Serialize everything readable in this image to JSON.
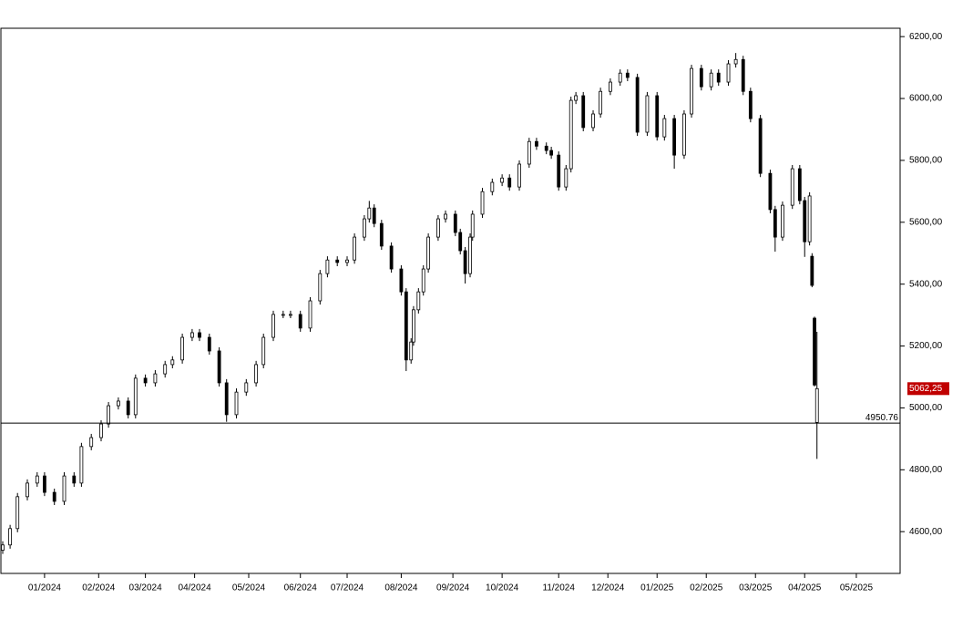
{
  "chart_data": {
    "type": "candlestick",
    "color": "#000000",
    "x": [
      0,
      3,
      6,
      10,
      14,
      17,
      21,
      25,
      29,
      32,
      36,
      40,
      43,
      47,
      51,
      54,
      58,
      62,
      66,
      69,
      73,
      77,
      80,
      84,
      88,
      91,
      95,
      99,
      103,
      106,
      110,
      114,
      117,
      121,
      125,
      129,
      132,
      136,
      140,
      143,
      147,
      149,
      151,
      154,
      158,
      162,
      164,
      166,
      167,
      169,
      171,
      173,
      177,
      180,
      184,
      186,
      188,
      190,
      191,
      195,
      199,
      203,
      206,
      210,
      214,
      217,
      221,
      223,
      226,
      229,
      231,
      233,
      236,
      240,
      243,
      247,
      251,
      254,
      258,
      262,
      266,
      269,
      273,
      277,
      280,
      284,
      288,
      291,
      295,
      298,
      301,
      304,
      308,
      312,
      314,
      317,
      321,
      324,
      326,
      328,
      329,
      330,
      331
    ],
    "open": [
      4540,
      4557,
      4610,
      4713,
      4757,
      4780,
      4727,
      4698,
      4780,
      4757,
      4875,
      4904,
      4948,
      5007,
      5022,
      4978,
      5096,
      5081,
      5110,
      5140,
      5155,
      5228,
      5243,
      5228,
      5184,
      5081,
      4978,
      5051,
      5081,
      5140,
      5228,
      5302,
      5302,
      5302,
      5258,
      5346,
      5434,
      5478,
      5470,
      5478,
      5552,
      5611,
      5646,
      5596,
      5523,
      5449,
      5375,
      5155,
      5213,
      5317,
      5375,
      5449,
      5552,
      5611,
      5626,
      5567,
      5508,
      5434,
      5552,
      5626,
      5699,
      5729,
      5743,
      5714,
      5788,
      5861,
      5846,
      5832,
      5817,
      5714,
      5773,
      5994,
      6009,
      5906,
      5950,
      6023,
      6053,
      6082,
      6068,
      5891,
      6009,
      5876,
      5935,
      5817,
      5950,
      6097,
      6038,
      6082,
      6053,
      6112,
      6126,
      6023,
      5935,
      5758,
      5641,
      5552,
      5655,
      5773,
      5670,
      5537,
      5490,
      5290,
      4953
    ],
    "high": [
      4569,
      4622,
      4725,
      4769,
      4792,
      4792,
      4739,
      4792,
      4792,
      4887,
      4916,
      4960,
      5019,
      5034,
      5034,
      5108,
      5108,
      5122,
      5152,
      5167,
      5240,
      5255,
      5255,
      5240,
      5196,
      5093,
      5063,
      5093,
      5152,
      5240,
      5314,
      5314,
      5314,
      5314,
      5358,
      5446,
      5490,
      5490,
      5490,
      5564,
      5623,
      5669,
      5658,
      5608,
      5535,
      5461,
      5387,
      5225,
      5329,
      5387,
      5461,
      5564,
      5623,
      5638,
      5638,
      5579,
      5520,
      5564,
      5638,
      5711,
      5741,
      5755,
      5755,
      5800,
      5873,
      5873,
      5858,
      5844,
      5829,
      5785,
      6006,
      6021,
      6021,
      5962,
      6035,
      6065,
      6094,
      6094,
      6080,
      6021,
      6021,
      5947,
      5947,
      5962,
      6109,
      6109,
      6094,
      6094,
      6124,
      6147,
      6138,
      6035,
      5947,
      5770,
      5653,
      5667,
      5785,
      5785,
      5682,
      5697,
      5500,
      5295,
      5246
    ],
    "low": [
      4528,
      4545,
      4598,
      4701,
      4745,
      4715,
      4686,
      4686,
      4745,
      4745,
      4863,
      4892,
      4936,
      4995,
      4966,
      4966,
      5069,
      5069,
      5098,
      5128,
      5143,
      5216,
      5216,
      5172,
      5069,
      4955,
      4966,
      5039,
      5069,
      5128,
      5216,
      5290,
      5290,
      5246,
      5246,
      5334,
      5422,
      5458,
      5458,
      5466,
      5540,
      5599,
      5584,
      5511,
      5437,
      5363,
      5119,
      5143,
      5201,
      5305,
      5363,
      5437,
      5540,
      5599,
      5555,
      5496,
      5402,
      5422,
      5540,
      5614,
      5687,
      5717,
      5702,
      5702,
      5776,
      5834,
      5820,
      5805,
      5702,
      5702,
      5761,
      5982,
      5894,
      5894,
      5938,
      6011,
      6041,
      6056,
      5879,
      5879,
      5864,
      5864,
      5773,
      5805,
      5938,
      6026,
      6026,
      6041,
      6041,
      6100,
      6011,
      5923,
      5746,
      5629,
      5505,
      5540,
      5643,
      5658,
      5488,
      5525,
      5390,
      5069,
      4835
    ],
    "close": [
      4557,
      4610,
      4713,
      4757,
      4780,
      4727,
      4698,
      4780,
      4757,
      4875,
      4904,
      4948,
      5007,
      5022,
      4978,
      5096,
      5081,
      5110,
      5140,
      5155,
      5228,
      5243,
      5228,
      5184,
      5081,
      4978,
      5051,
      5081,
      5140,
      5228,
      5302,
      5302,
      5302,
      5258,
      5346,
      5434,
      5478,
      5470,
      5478,
      5552,
      5611,
      5646,
      5596,
      5523,
      5449,
      5375,
      5155,
      5213,
      5317,
      5375,
      5449,
      5552,
      5611,
      5626,
      5567,
      5508,
      5434,
      5552,
      5626,
      5699,
      5729,
      5743,
      5714,
      5788,
      5861,
      5846,
      5832,
      5817,
      5714,
      5773,
      5994,
      6009,
      5906,
      5950,
      6023,
      6053,
      6082,
      6068,
      5891,
      6009,
      5876,
      5935,
      5817,
      5950,
      6097,
      6038,
      6082,
      6053,
      6112,
      6126,
      6023,
      5935,
      5758,
      5641,
      5552,
      5655,
      5773,
      5670,
      5537,
      5685,
      5396,
      5074,
      5062.25
    ],
    "xlim": [
      -0.74,
      364.8
    ],
    "ylim": [
      4465,
      6227
    ],
    "xticks": [
      {
        "value": 17,
        "label": "01/2024"
      },
      {
        "value": 39,
        "label": "02/2024"
      },
      {
        "value": 58,
        "label": "03/2024"
      },
      {
        "value": 78,
        "label": "04/2024"
      },
      {
        "value": 100,
        "label": "05/2024"
      },
      {
        "value": 121,
        "label": "06/2024"
      },
      {
        "value": 140,
        "label": "07/2024"
      },
      {
        "value": 162,
        "label": "08/2024"
      },
      {
        "value": 183,
        "label": "09/2024"
      },
      {
        "value": 203,
        "label": "10/2024"
      },
      {
        "value": 226,
        "label": "11/2024"
      },
      {
        "value": 246,
        "label": "12/2024"
      },
      {
        "value": 266,
        "label": "01/2025"
      },
      {
        "value": 286,
        "label": "02/2025"
      },
      {
        "value": 306,
        "label": "03/2025"
      },
      {
        "value": 326,
        "label": "04/2025"
      },
      {
        "value": 347,
        "label": "05/2025"
      }
    ],
    "yticks": [
      {
        "value": 4600,
        "label": "4600,00"
      },
      {
        "value": 4800,
        "label": "4800,00"
      },
      {
        "value": 5000,
        "label": "5000,00"
      },
      {
        "value": 5200,
        "label": "5200,00"
      },
      {
        "value": 5400,
        "label": "5400,00"
      },
      {
        "value": 5600,
        "label": "5600,00"
      },
      {
        "value": 5800,
        "label": "5800,00"
      },
      {
        "value": 6000,
        "label": "6000,00"
      },
      {
        "value": 6200,
        "label": "6200,00"
      }
    ],
    "reference_line": 4950.76,
    "last_price": {
      "value": 5062.25,
      "label": "5062,25"
    },
    "last_price_color": "#c00000"
  }
}
